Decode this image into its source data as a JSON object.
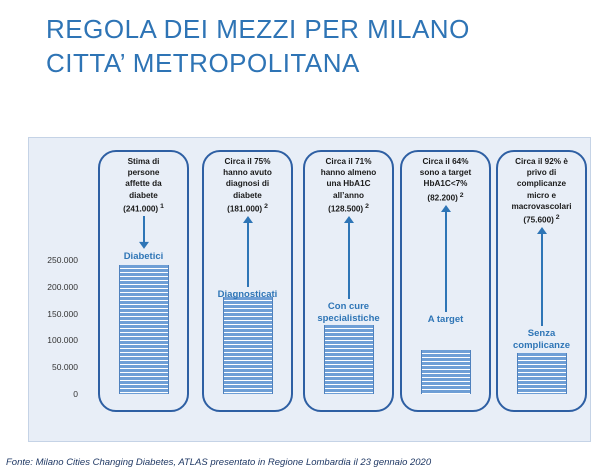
{
  "title_line1": "REGOLA DEI MEZZI PER MILANO",
  "title_line2": "CITTA’ METROPOLITANA",
  "colors": {
    "title": "#2e74b5",
    "bar": "#6f9fd6",
    "box_border": "#2e5fa3",
    "label": "#2e75b6"
  },
  "columns": [
    {
      "caption": [
        "Stima di",
        "persone",
        "affette da",
        "diabete"
      ],
      "value_text": "(241.000)",
      "ref": "1",
      "bar_label": [
        "Diabetici"
      ]
    },
    {
      "caption": [
        "Circa il 75%",
        "hanno avuto",
        "diagnosi di",
        "diabete"
      ],
      "value_text": "(181.000)",
      "ref": "2",
      "bar_label": [
        "Diagnosticati"
      ]
    },
    {
      "caption": [
        "Circa il 71%",
        "hanno almeno",
        "una HbA1C",
        "all’anno"
      ],
      "value_text": "(128.500)",
      "ref": "2",
      "bar_label": [
        "Con cure",
        "specialistiche"
      ]
    },
    {
      "caption": [
        "Circa il 64%",
        "sono a target",
        "HbA1C<7%"
      ],
      "value_text": "(82.200)",
      "ref": "2",
      "bar_label": [
        "A target"
      ]
    },
    {
      "caption": [
        "Circa il 92% è",
        "privo di",
        "complicanze",
        "micro e",
        "macrovascolari"
      ],
      "value_text": "(75.600)",
      "ref": "2",
      "bar_label": [
        "Senza",
        "complicanze"
      ]
    }
  ],
  "chart_data": {
    "type": "bar",
    "categories": [
      "Diabetici",
      "Diagnosticati",
      "Con cure specialistiche",
      "A target",
      "Senza complicanze"
    ],
    "values": [
      241000,
      181000,
      128500,
      82200,
      75600
    ],
    "ylim": [
      0,
      250000
    ],
    "yticks": [
      "250.000",
      "200.000",
      "150.000",
      "100.000",
      "50.000",
      "0"
    ],
    "grid": false
  },
  "source": "Fonte: Milano Cities Changing Diabetes, ATLAS presentato in Regione Lombardia il 23 gennaio 2020"
}
